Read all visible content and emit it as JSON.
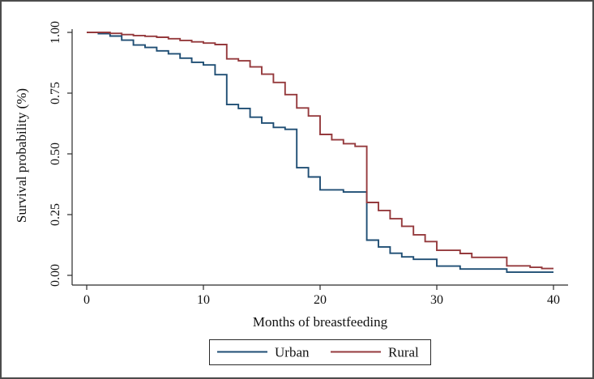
{
  "figure": {
    "background": "#ffffff",
    "border_color": "#4c4c4c",
    "text_color": "#111111",
    "axis_color": "#2a2a2a"
  },
  "chart_data": {
    "type": "line",
    "subtype": "kaplan-meier-step",
    "title": "",
    "xlabel": "Months of breastfeeding",
    "ylabel": "Survival probability (%)",
    "xlim": [
      0,
      40
    ],
    "ylim": [
      0,
      1
    ],
    "xticks": [
      0,
      10,
      20,
      30,
      40
    ],
    "ytick_labels": [
      "1.00",
      "0.75",
      "0.50",
      "0.25",
      "0.00"
    ],
    "ytick_values": [
      1.0,
      0.75,
      0.5,
      0.25,
      0.0
    ],
    "grid": false,
    "legend_position": "bottom-center",
    "series": [
      {
        "name": "Urban",
        "color": "#1f4e74",
        "steps": [
          [
            0,
            1.0
          ],
          [
            1,
            0.995
          ],
          [
            2,
            0.985
          ],
          [
            3,
            0.968
          ],
          [
            4,
            0.948
          ],
          [
            5,
            0.938
          ],
          [
            6,
            0.924
          ],
          [
            7,
            0.912
          ],
          [
            8,
            0.894
          ],
          [
            9,
            0.877
          ],
          [
            10,
            0.866
          ],
          [
            11,
            0.826
          ],
          [
            12,
            0.703
          ],
          [
            13,
            0.687
          ],
          [
            14,
            0.651
          ],
          [
            15,
            0.627
          ],
          [
            16,
            0.609
          ],
          [
            17,
            0.601
          ],
          [
            18,
            0.443
          ],
          [
            19,
            0.405
          ],
          [
            20,
            0.352
          ],
          [
            22,
            0.343
          ],
          [
            24,
            0.145
          ],
          [
            25,
            0.117
          ],
          [
            26,
            0.091
          ],
          [
            27,
            0.076
          ],
          [
            28,
            0.066
          ],
          [
            30,
            0.038
          ],
          [
            32,
            0.026
          ],
          [
            36,
            0.013
          ],
          [
            40,
            0.013
          ]
        ]
      },
      {
        "name": "Rural",
        "color": "#953a3d",
        "steps": [
          [
            0,
            1.0
          ],
          [
            2,
            0.996
          ],
          [
            3,
            0.991
          ],
          [
            4,
            0.987
          ],
          [
            5,
            0.984
          ],
          [
            6,
            0.98
          ],
          [
            7,
            0.974
          ],
          [
            8,
            0.967
          ],
          [
            9,
            0.961
          ],
          [
            10,
            0.956
          ],
          [
            11,
            0.95
          ],
          [
            12,
            0.891
          ],
          [
            13,
            0.883
          ],
          [
            14,
            0.858
          ],
          [
            15,
            0.828
          ],
          [
            16,
            0.794
          ],
          [
            17,
            0.744
          ],
          [
            18,
            0.689
          ],
          [
            19,
            0.656
          ],
          [
            20,
            0.58
          ],
          [
            21,
            0.558
          ],
          [
            22,
            0.542
          ],
          [
            23,
            0.531
          ],
          [
            24,
            0.3
          ],
          [
            25,
            0.267
          ],
          [
            26,
            0.233
          ],
          [
            27,
            0.202
          ],
          [
            28,
            0.167
          ],
          [
            29,
            0.139
          ],
          [
            30,
            0.103
          ],
          [
            32,
            0.09
          ],
          [
            33,
            0.074
          ],
          [
            36,
            0.039
          ],
          [
            38,
            0.033
          ],
          [
            39,
            0.028
          ],
          [
            40,
            0.028
          ]
        ]
      }
    ]
  },
  "legend": {
    "items": [
      {
        "label": "Urban",
        "color": "#1f4e74"
      },
      {
        "label": "Rural",
        "color": "#953a3d"
      }
    ]
  }
}
